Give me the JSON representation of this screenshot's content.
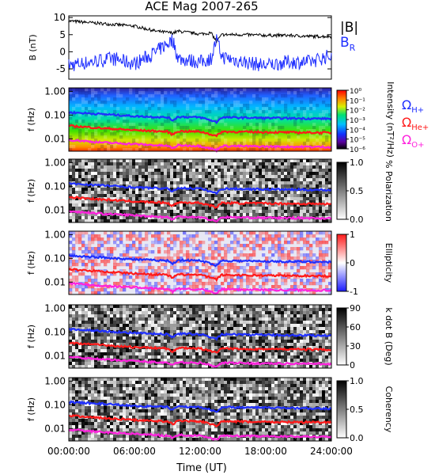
{
  "title": "ACE Mag 2007-265",
  "colors": {
    "b_total": "#000000",
    "b_r": "#1f2fff",
    "h_plus": "#1f2fff",
    "he_plus": "#ff1a1a",
    "o_plus": "#ff22dd"
  },
  "chart_data": [
    {
      "type": "line",
      "panel": "field",
      "ylabel": "B (nT)",
      "ylim": [
        -8,
        10.5
      ],
      "yticks": [
        "10",
        "5",
        "0",
        "-5"
      ],
      "x": [
        "00:00",
        "02:00",
        "04:00",
        "06:00",
        "08:00",
        "09:30",
        "10:00",
        "12:00",
        "13:00",
        "13:30",
        "14:00",
        "16:00",
        "18:00",
        "20:00",
        "22:00",
        "24:00"
      ],
      "series": [
        {
          "name": "|B|",
          "values": [
            9,
            8.5,
            8,
            7.5,
            6,
            5.5,
            6,
            5.2,
            5.5,
            3,
            5,
            5,
            4.8,
            4.8,
            4.5,
            4.5
          ]
        },
        {
          "name": "B_R",
          "values": [
            -4,
            -3,
            -2,
            -3.5,
            0,
            3.5,
            -2,
            -3,
            -2,
            3.5,
            -1.5,
            -3,
            -4,
            -3,
            -3,
            -1
          ]
        }
      ],
      "legend": [
        "|B|",
        "B",
        "R"
      ]
    },
    {
      "type": "heatmap",
      "panel": "intensity",
      "ylabel": "f (Hz)",
      "yticks": [
        "1.00",
        "0.10",
        "0.01"
      ],
      "colorbar_label": "Intensity (nT²/Hz)",
      "colorbar_ticks": [
        "10⁰",
        "10⁻¹",
        "10⁻²",
        "10⁻³",
        "10⁻⁴",
        "10⁻⁵",
        "10⁻⁶"
      ],
      "legend": [
        "Ω",
        "H+",
        "Ω",
        "He+",
        "Ω",
        "O+"
      ]
    },
    {
      "type": "heatmap",
      "panel": "polarization",
      "ylabel": "f (Hz)",
      "yticks": [
        "1.00",
        "0.10",
        "0.01"
      ],
      "colorbar_label": "% Polarization",
      "colorbar_ticks": [
        "1.0",
        "0.5",
        "0.0"
      ]
    },
    {
      "type": "heatmap",
      "panel": "ellipticity",
      "ylabel": "f (Hz)",
      "yticks": [
        "1.00",
        "0.10",
        "0.01"
      ],
      "colorbar_label": "Ellipticity",
      "colorbar_ticks": [
        "1",
        "0",
        "-1"
      ]
    },
    {
      "type": "heatmap",
      "panel": "kdotb",
      "ylabel": "f (Hz)",
      "yticks": [
        "1.00",
        "0.10",
        "0.01"
      ],
      "colorbar_label": "k dot B (Deg)",
      "colorbar_ticks": [
        "90",
        "60",
        "30",
        "0"
      ]
    },
    {
      "type": "heatmap",
      "panel": "coherency",
      "ylabel": "f (Hz)",
      "yticks": [
        "1.00",
        "0.10",
        "0.01"
      ],
      "colorbar_label": "Coherency",
      "colorbar_ticks": [
        "1.0",
        "0.5",
        "0.0"
      ]
    }
  ],
  "gyrofrequency_lines": {
    "x": [
      "00:00",
      "03:00",
      "06:00",
      "09:00",
      "09:30",
      "10:00",
      "12:00",
      "13:30",
      "14:00",
      "18:00",
      "24:00"
    ],
    "h_plus_hz": [
      0.13,
      0.11,
      0.09,
      0.08,
      0.06,
      0.085,
      0.08,
      0.05,
      0.08,
      0.075,
      0.07
    ],
    "he_plus_hz": [
      0.035,
      0.028,
      0.023,
      0.02,
      0.015,
      0.021,
      0.02,
      0.013,
      0.02,
      0.019,
      0.018
    ],
    "o_plus_hz": [
      0.009,
      0.007,
      0.006,
      0.005,
      0.004,
      0.0053,
      0.005,
      0.0033,
      0.005,
      0.0047,
      0.0045
    ]
  },
  "x_axis": {
    "ticks": [
      "00:00:00",
      "06:00:00",
      "12:00:00",
      "18:00:00",
      "24:00:00"
    ],
    "label": "Time (UT)"
  }
}
